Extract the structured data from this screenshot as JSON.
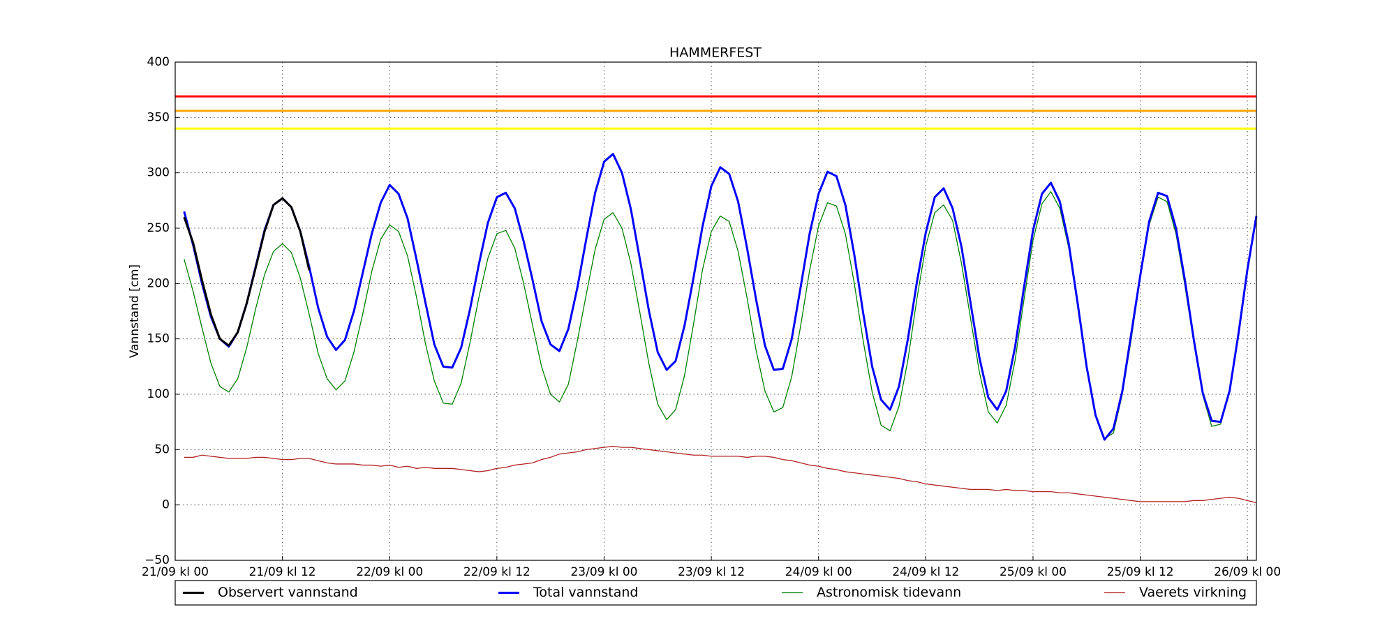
{
  "chart_data": {
    "type": "line",
    "title": "HAMMERFEST",
    "ylabel": "Vannstand [cm]",
    "x": [
      1,
      2,
      3,
      4,
      5,
      6,
      7,
      8,
      9,
      10,
      11,
      12,
      13,
      14,
      15,
      16,
      17,
      18,
      19,
      20,
      21,
      22,
      23,
      24,
      25,
      26,
      27,
      28,
      29,
      30,
      31,
      32,
      33,
      34,
      35,
      36,
      37,
      38,
      39,
      40,
      41,
      42,
      43,
      44,
      45,
      46,
      47,
      48,
      49,
      50,
      51,
      52,
      53,
      54,
      55,
      56,
      57,
      58,
      59,
      60,
      61,
      62,
      63,
      64,
      65,
      66,
      67,
      68,
      69,
      70,
      71,
      72,
      73,
      74,
      75,
      76,
      77,
      78,
      79,
      80,
      81,
      82,
      83,
      84,
      85,
      86,
      87,
      88,
      89,
      90,
      91,
      92,
      93,
      94,
      95,
      96,
      97,
      98,
      99,
      100,
      101,
      102,
      103,
      104,
      105,
      106,
      107,
      108,
      109,
      110,
      111,
      112,
      113,
      114,
      115,
      116,
      117,
      118,
      119,
      120,
      121
    ],
    "xlim": [
      0,
      121
    ],
    "xticks": [
      {
        "value": 0,
        "label": "21/09 kl 00"
      },
      {
        "value": 12,
        "label": "21/09 kl 12"
      },
      {
        "value": 24,
        "label": "22/09 kl 00"
      },
      {
        "value": 36,
        "label": "22/09 kl 12"
      },
      {
        "value": 48,
        "label": "23/09 kl 00"
      },
      {
        "value": 60,
        "label": "23/09 kl 12"
      },
      {
        "value": 72,
        "label": "24/09 kl 00"
      },
      {
        "value": 84,
        "label": "24/09 kl 12"
      },
      {
        "value": 96,
        "label": "25/09 kl 00"
      },
      {
        "value": 108,
        "label": "25/09 kl 12"
      },
      {
        "value": 120,
        "label": "26/09 kl 00"
      }
    ],
    "ylim": [
      -50,
      400
    ],
    "yticks": [
      {
        "value": -50,
        "label": "−50"
      },
      0,
      50,
      100,
      150,
      200,
      250,
      300,
      350,
      400
    ],
    "grid": true,
    "reference_lines": [
      {
        "value": 369,
        "color": "#ff0000"
      },
      {
        "value": 356,
        "color": "#ffa500"
      },
      {
        "value": 340,
        "color": "#ffff00"
      }
    ],
    "series": [
      {
        "name": "Observert vannstand",
        "color": "#000000",
        "width": 3,
        "x": [
          1,
          2,
          3,
          4,
          5,
          6,
          7,
          8,
          9,
          10,
          11,
          12,
          13,
          14,
          15
        ],
        "values": [
          260,
          237,
          203,
          172,
          150,
          144,
          156,
          182,
          214,
          247,
          271,
          277,
          269,
          247,
          212
        ]
      },
      {
        "name": "Total vannstand",
        "color": "#0000ff",
        "width": 3,
        "values": [
          265,
          235,
          200,
          170,
          150,
          143,
          156,
          182,
          215,
          248,
          271,
          277,
          269,
          247,
          215,
          178,
          152,
          140,
          149,
          175,
          210,
          245,
          273,
          289,
          281,
          259,
          222,
          183,
          145,
          125,
          124,
          142,
          177,
          218,
          255,
          278,
          282,
          268,
          238,
          203,
          166,
          145,
          139,
          159,
          196,
          240,
          282,
          310,
          317,
          300,
          267,
          222,
          176,
          138,
          122,
          130,
          162,
          205,
          251,
          288,
          305,
          299,
          274,
          232,
          186,
          144,
          122,
          123,
          150,
          197,
          245,
          281,
          301,
          297,
          271,
          226,
          173,
          125,
          95,
          86,
          107,
          150,
          201,
          246,
          278,
          286,
          268,
          233,
          183,
          133,
          97,
          86,
          103,
          143,
          197,
          248,
          281,
          291,
          274,
          236,
          182,
          125,
          81,
          59,
          69,
          103,
          155,
          207,
          256,
          282,
          279,
          250,
          203,
          149,
          101,
          76,
          75,
          103,
          155,
          213,
          261
        ]
      },
      {
        "name": "Astronomisk tidevann",
        "color": "#008000",
        "width": 1.3,
        "values": [
          222,
          193,
          160,
          128,
          107,
          102,
          114,
          142,
          177,
          208,
          229,
          236,
          228,
          205,
          172,
          137,
          114,
          104,
          112,
          138,
          173,
          211,
          240,
          253,
          247,
          225,
          188,
          146,
          112,
          92,
          91,
          110,
          147,
          188,
          223,
          245,
          248,
          232,
          200,
          162,
          125,
          100,
          93,
          109,
          148,
          190,
          231,
          258,
          264,
          250,
          218,
          174,
          128,
          91,
          77,
          86,
          117,
          163,
          212,
          247,
          261,
          256,
          229,
          187,
          140,
          103,
          84,
          88,
          116,
          162,
          212,
          252,
          273,
          270,
          245,
          200,
          148,
          102,
          72,
          67,
          89,
          131,
          186,
          234,
          264,
          271,
          257,
          218,
          169,
          120,
          84,
          74,
          90,
          131,
          186,
          239,
          272,
          283,
          268,
          232,
          179,
          124,
          80,
          60,
          65,
          100,
          150,
          205,
          253,
          278,
          274,
          245,
          198,
          146,
          99,
          71,
          73,
          103,
          155,
          213,
          261
        ]
      },
      {
        "name": "Vaerets virkning",
        "color": "#b22222",
        "width": 1.3,
        "values": [
          43,
          43,
          45,
          44,
          43,
          42,
          42,
          42,
          43,
          43,
          42,
          41,
          41,
          42,
          42,
          40,
          38,
          37,
          37,
          37,
          36,
          36,
          35,
          36,
          34,
          35,
          33,
          34,
          33,
          33,
          33,
          32,
          31,
          30,
          31,
          33,
          34,
          36,
          37,
          38,
          41,
          43,
          46,
          47,
          48,
          50,
          51,
          52,
          53,
          52,
          52,
          51,
          50,
          49,
          48,
          47,
          46,
          45,
          45,
          44,
          44,
          44,
          44,
          43,
          44,
          44,
          43,
          41,
          40,
          38,
          36,
          35,
          33,
          32,
          30,
          29,
          28,
          27,
          26,
          25,
          24,
          22,
          21,
          19,
          18,
          17,
          16,
          15,
          14,
          14,
          14,
          13,
          14,
          13,
          13,
          12,
          12,
          12,
          11,
          11,
          10,
          9,
          8,
          7,
          6,
          5,
          4,
          3,
          3,
          3,
          3,
          3,
          3,
          4,
          4,
          5,
          6,
          7,
          6,
          4,
          2
        ]
      }
    ]
  }
}
